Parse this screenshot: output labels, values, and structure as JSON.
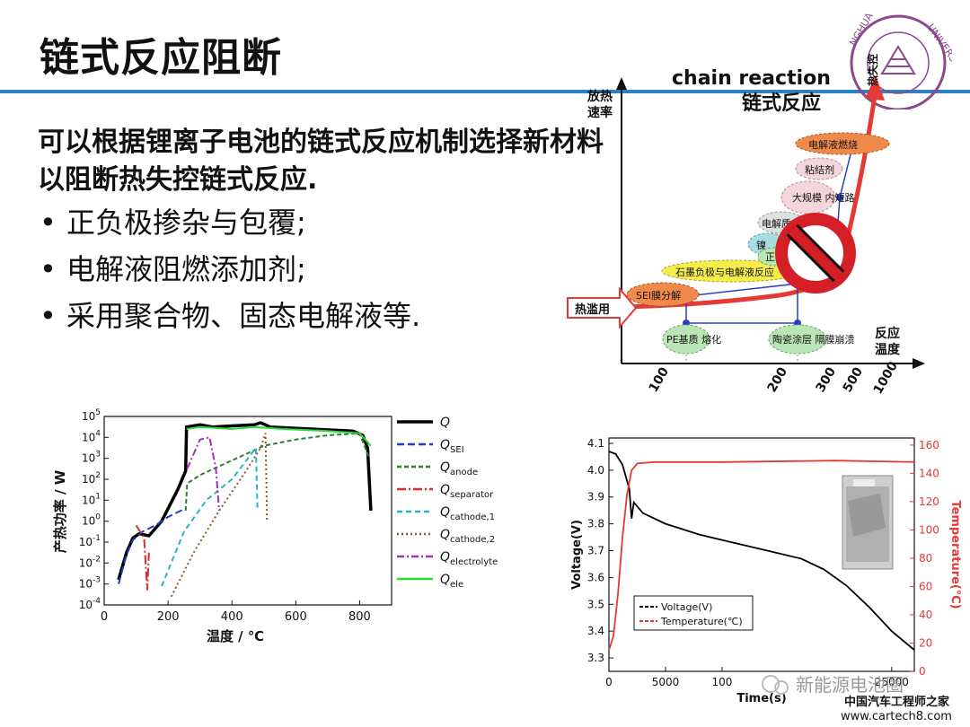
{
  "slide": {
    "title": "链式反应阻断",
    "intro": "可以根据锂离子电池的链式反应机制选择新材料以阻断热失控链式反应.",
    "bullets": [
      "正负极掺杂与包覆;",
      "电解液阻燃添加剂;",
      "采用聚合物、固态电解液等."
    ],
    "accent_color": "#2f80c1"
  },
  "seal": {
    "text": "NGHUA UNIVERSITY"
  },
  "chain_diagram": {
    "heading_en": "chain reaction",
    "heading_zh": "链式反应",
    "ylabel_1": "放热",
    "ylabel_2": "速率",
    "xlabel_1": "反应",
    "xlabel_2": "温度",
    "entry_label": "热滥用",
    "runaway_label": "热失控",
    "x_ticks": [
      "100",
      "200",
      "300",
      "500",
      "1000"
    ],
    "stages": [
      "SEI膜分解",
      "石墨负极与电解液反应",
      "镍",
      "正",
      "电解质",
      "大规模 内短路",
      "粘结剂",
      "电解液燃烧"
    ],
    "bottom_stages": [
      "PE基质 熔化",
      "陶瓷涂层 隔膜崩溃"
    ],
    "icon": "prohibition-icon"
  },
  "chart_data": [
    {
      "type": "line",
      "xlabel": "温度 / ℃",
      "ylabel": "产热功率 / W",
      "y_scale": "log",
      "xlim": [
        0,
        900
      ],
      "ylim_exponent": [
        -4,
        5
      ],
      "x_ticks": [
        "0",
        "200",
        "400",
        "600",
        "800"
      ],
      "y_tick_labels": [
        "10^-4",
        "10^-3",
        "10^-2",
        "10^-1",
        "10^0",
        "10^1",
        "10^2",
        "10^3",
        "10^4",
        "10^5"
      ],
      "legend_position": "right",
      "series": [
        {
          "name": "Q",
          "sub": "",
          "color": "#000000",
          "dash": "",
          "points": [
            [
              45,
              -2.8
            ],
            [
              70,
              -1.5
            ],
            [
              90,
              -0.8
            ],
            [
              110,
              -0.6
            ],
            [
              140,
              -0.7
            ],
            [
              180,
              0
            ],
            [
              230,
              1.5
            ],
            [
              255,
              2.4
            ],
            [
              258,
              4.5
            ],
            [
              300,
              4.6
            ],
            [
              340,
              4.5
            ],
            [
              400,
              4.55
            ],
            [
              470,
              4.6
            ],
            [
              490,
              4.7
            ],
            [
              520,
              4.5
            ],
            [
              650,
              4.4
            ],
            [
              780,
              4.3
            ],
            [
              810,
              4.1
            ],
            [
              825,
              3.5
            ],
            [
              835,
              0.5
            ]
          ]
        },
        {
          "name": "Q",
          "sub": "SEI",
          "color": "#1f3fbf",
          "dash": "8,4",
          "points": [
            [
              45,
              -3
            ],
            [
              70,
              -1.6
            ],
            [
              90,
              -0.9
            ],
            [
              120,
              -0.5
            ],
            [
              160,
              -0.2
            ],
            [
              200,
              0.2
            ],
            [
              240,
              0.5
            ],
            [
              255,
              0.6
            ]
          ]
        },
        {
          "name": "Q",
          "sub": "anode",
          "color": "#2e7d32",
          "dash": "5,3",
          "points": [
            [
              255,
              0.5
            ],
            [
              260,
              1.8
            ],
            [
              300,
              2.2
            ],
            [
              400,
              2.9
            ],
            [
              500,
              3.6
            ],
            [
              600,
              3.9
            ],
            [
              700,
              4.1
            ],
            [
              800,
              4.2
            ],
            [
              830,
              3.0
            ]
          ]
        },
        {
          "name": "Q",
          "sub": "separator",
          "color": "#d32f2f",
          "dash": "10,3,2,3",
          "points": [
            [
              100,
              -0.2
            ],
            [
              125,
              -0.8
            ],
            [
              135,
              -3.3
            ],
            [
              140,
              -1.5
            ]
          ]
        },
        {
          "name": "Q",
          "sub": "cathode,1",
          "color": "#2bb3c0",
          "dash": "6,4",
          "points": [
            [
              180,
              -3.1
            ],
            [
              250,
              -0.5
            ],
            [
              320,
              1.0
            ],
            [
              400,
              2.0
            ],
            [
              460,
              3.2
            ],
            [
              475,
              3.5
            ],
            [
              480,
              0.5
            ]
          ]
        },
        {
          "name": "Q",
          "sub": "cathode,2",
          "color": "#8d5a2b",
          "dash": "2,3",
          "points": [
            [
              210,
              -3.6
            ],
            [
              280,
              -1.5
            ],
            [
              360,
              0.5
            ],
            [
              440,
              2.3
            ],
            [
              490,
              3.5
            ],
            [
              505,
              4.2
            ],
            [
              510,
              0.0
            ]
          ]
        },
        {
          "name": "Q",
          "sub": "electrolyte",
          "color": "#a52fb5",
          "dash": "8,3,2,3",
          "points": [
            [
              260,
              2.5
            ],
            [
              300,
              3.9
            ],
            [
              330,
              4.0
            ],
            [
              350,
              2.5
            ],
            [
              360,
              0.5
            ]
          ]
        },
        {
          "name": "Q",
          "sub": "ele",
          "color": "#2bdd3a",
          "dash": "",
          "points": [
            [
              258,
              4.4
            ],
            [
              300,
              4.5
            ],
            [
              400,
              4.4
            ],
            [
              470,
              4.5
            ],
            [
              560,
              4.4
            ],
            [
              700,
              4.3
            ],
            [
              800,
              4.2
            ],
            [
              835,
              3.6
            ]
          ]
        }
      ]
    },
    {
      "type": "line",
      "xlabel": "Time(s)",
      "ylabel_left": "Voltage(V)",
      "ylabel_right": "Temperature(℃)",
      "xlim": [
        0,
        27000
      ],
      "ylim_left": [
        3.25,
        4.12
      ],
      "ylim_right": [
        0,
        165
      ],
      "x_ticks": [
        "0",
        "5000",
        "100",
        "25000"
      ],
      "y_ticks_left": [
        "3.3",
        "3.4",
        "3.5",
        "3.6",
        "3.7",
        "3.8",
        "3.9",
        "4.0",
        "4.1"
      ],
      "y_ticks_right": [
        "0",
        "20",
        "40",
        "60",
        "80",
        "100",
        "120",
        "140",
        "160"
      ],
      "legend_position": "bottom-left",
      "series": [
        {
          "name": "Voltage(V)",
          "axis": "left",
          "color": "#000000",
          "points": [
            [
              0,
              4.07
            ],
            [
              600,
              4.06
            ],
            [
              1200,
              4.02
            ],
            [
              1800,
              3.93
            ],
            [
              2000,
              3.82
            ],
            [
              2200,
              3.88
            ],
            [
              3000,
              3.84
            ],
            [
              5000,
              3.8
            ],
            [
              8000,
              3.76
            ],
            [
              11000,
              3.73
            ],
            [
              14000,
              3.7
            ],
            [
              17000,
              3.67
            ],
            [
              19000,
              3.63
            ],
            [
              21000,
              3.57
            ],
            [
              23000,
              3.49
            ],
            [
              25000,
              3.4
            ],
            [
              27000,
              3.33
            ]
          ]
        },
        {
          "name": "Temperature(℃)",
          "axis": "right",
          "color": "#e53935",
          "points": [
            [
              0,
              15
            ],
            [
              400,
              25
            ],
            [
              800,
              55
            ],
            [
              1200,
              95
            ],
            [
              1600,
              125
            ],
            [
              2000,
              142
            ],
            [
              2500,
              147
            ],
            [
              4000,
              148
            ],
            [
              10000,
              148
            ],
            [
              20000,
              149
            ],
            [
              27000,
              148
            ]
          ]
        }
      ]
    }
  ],
  "watermark": {
    "brand": "新能源电池圈",
    "site_zh": "中国汽车工程师之家",
    "url": "www.cartech8.com"
  }
}
